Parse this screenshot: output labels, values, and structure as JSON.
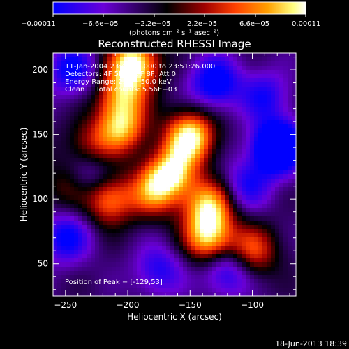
{
  "chart_data": {
    "type": "heatmap",
    "title": "Reconstructed RHESSI Image",
    "xlabel": "Heliocentric X (arcsec)",
    "ylabel": "Heliocentric Y (arcsec)",
    "xlim": [
      -260,
      -65
    ],
    "ylim": [
      25,
      213
    ],
    "x_ticks": [
      -250,
      -200,
      -150,
      -100
    ],
    "y_ticks": [
      50,
      100,
      150,
      200
    ],
    "x_tick_labels": [
      "−250",
      "−200",
      "−150",
      "−100"
    ],
    "y_tick_labels": [
      "50",
      "100",
      "150",
      "200"
    ],
    "colorbar": {
      "range": [
        -0.00011,
        0.00011
      ],
      "tick_labels": [
        "−0.00011",
        "−6.6e−05",
        "−2.2e−05",
        "2.2e−05",
        "6.6e−05",
        "0.00011"
      ],
      "unit_label": "(photons cm⁻² s⁻¹ asec⁻²)",
      "colors": [
        "#0000ff",
        "#6a00d8",
        "#000000",
        "#a00000",
        "#ff4000",
        "#ffa000",
        "#ffff80",
        "#ffffff"
      ]
    },
    "annotations": [
      "11-Jan-2004 23:46:40.000 to 23:51:26.000",
      "Detectors: 4F 5F 6F 7F 8F, Att 0",
      "Energy Range: 25.0 - 50.0 keV",
      "Clean     Total counts: 5.56E+03",
      "Position of Peak = [-129,53]"
    ],
    "sources": [
      {
        "x": -195,
        "y": 205,
        "value": 1.0
      },
      {
        "x": -150,
        "y": 148,
        "value": 1.0
      },
      {
        "x": -165,
        "y": 120,
        "value": 0.85
      },
      {
        "x": -135,
        "y": 95,
        "value": 0.8
      },
      {
        "x": -135,
        "y": 70,
        "value": 0.85
      },
      {
        "x": -205,
        "y": 155,
        "value": 0.75
      },
      {
        "x": -215,
        "y": 100,
        "value": 0.7
      },
      {
        "x": -180,
        "y": 105,
        "value": 0.6
      },
      {
        "x": -205,
        "y": 180,
        "value": 0.65
      },
      {
        "x": -100,
        "y": 60,
        "value": 0.6
      },
      {
        "x": -230,
        "y": 140,
        "value": 0.45
      },
      {
        "x": -250,
        "y": 110,
        "value": 0.3
      },
      {
        "x": -245,
        "y": 200,
        "value": -0.5
      },
      {
        "x": -80,
        "y": 140,
        "value": -1.0
      },
      {
        "x": -130,
        "y": 190,
        "value": -0.6
      },
      {
        "x": -250,
        "y": 70,
        "value": -0.5
      },
      {
        "x": -230,
        "y": 120,
        "value": -0.4
      },
      {
        "x": -120,
        "y": 45,
        "value": -0.5
      },
      {
        "x": -175,
        "y": 45,
        "value": -0.4
      },
      {
        "x": -90,
        "y": 180,
        "value": -0.4
      },
      {
        "x": -105,
        "y": 110,
        "value": -0.4
      }
    ]
  },
  "footer": {
    "timestamp": "18-Jun-2013 18:39"
  }
}
